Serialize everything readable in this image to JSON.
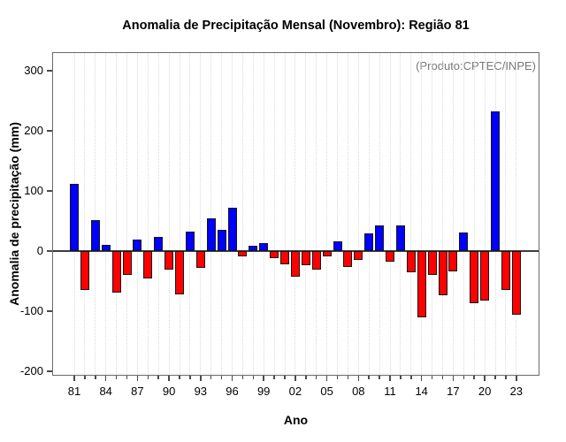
{
  "chart_data": {
    "type": "bar",
    "title": "Anomalia de Precipitação Mensal (Novembro): Região 81",
    "annotation": "(Produto:CPTEC/INPE)",
    "xlabel": "Ano",
    "ylabel": "Anomalia de precipitação (mm)",
    "years": [
      "81",
      "82",
      "83",
      "84",
      "85",
      "86",
      "87",
      "88",
      "89",
      "90",
      "91",
      "92",
      "93",
      "94",
      "95",
      "96",
      "97",
      "98",
      "99",
      "00",
      "01",
      "02",
      "03",
      "04",
      "05",
      "06",
      "07",
      "08",
      "09",
      "10",
      "11",
      "12",
      "13",
      "14",
      "15",
      "16",
      "17",
      "18",
      "19",
      "20",
      "21",
      "22",
      "23"
    ],
    "values": [
      112,
      -64,
      52,
      11,
      -69,
      -39,
      19,
      -45,
      24,
      -31,
      -72,
      32,
      -28,
      54,
      35,
      72,
      -8,
      9,
      13,
      -12,
      -22,
      -42,
      -24,
      -30,
      -9,
      17,
      -26,
      -14,
      30,
      43,
      -17,
      43,
      -35,
      -110,
      -39,
      -73,
      -33,
      31,
      -86,
      -82,
      233,
      -65,
      -105
    ],
    "x_tick_labels_shown": [
      "81",
      "84",
      "87",
      "90",
      "93",
      "96",
      "99",
      "02",
      "05",
      "08",
      "11",
      "14",
      "17",
      "20",
      "23"
    ],
    "yticks": [
      300,
      200,
      100,
      0,
      -100,
      -200
    ],
    "ylim": [
      -207,
      331
    ],
    "bar_colors": {
      "positive": "#0000ff",
      "negative": "#ff0000"
    },
    "grid": "vertical dotted line per year",
    "legend": "none"
  }
}
